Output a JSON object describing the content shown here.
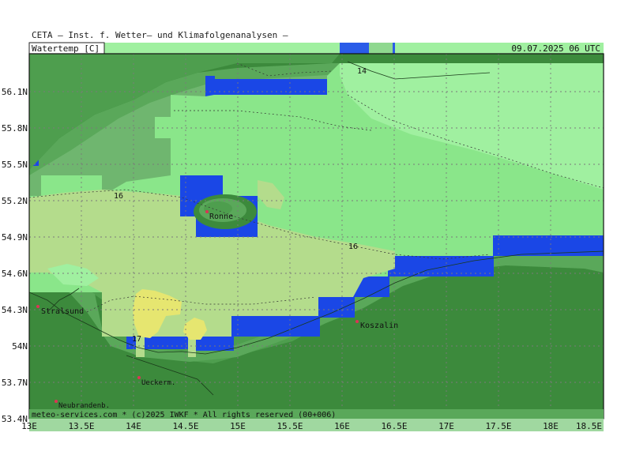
{
  "header": {
    "title": "CETA — Inst. f. Wetter— und Klimafolgenanalysen —",
    "parameter": "Watertemp [C]",
    "datetime": "09.07.2025 06 UTC"
  },
  "footer": {
    "credit": "meteo-services.com * (c)2025 IWKF * All rights reserved (00+006)"
  },
  "axes": {
    "lat_labels": [
      "56.1N",
      "55.8N",
      "55.5N",
      "55.2N",
      "54.9N",
      "54.6N",
      "54.3N",
      "54N",
      "53.7N",
      "53.4N"
    ],
    "lon_labels": [
      "13E",
      "13.5E",
      "14E",
      "14.5E",
      "15E",
      "15.5E",
      "16E",
      "16.5E",
      "17E",
      "17.5E",
      "18E",
      "18.5E"
    ]
  },
  "contour_labels": [
    "14",
    "16",
    "16",
    "17"
  ],
  "cities": [
    "Ronne",
    "Stralsund",
    "Koszalin",
    "Ueckerm.",
    "Neubrandenb."
  ],
  "colors": {
    "land": "#4e9e4e",
    "coast_band": "#3c8a3c",
    "shelf_band": "#6fb66f",
    "deep_blue": "#1a47e6",
    "water_14": "#a0f0a0",
    "water_15": "#8ae68a",
    "water_16": "#b4dc8c",
    "water_17": "#e6e670",
    "city_marker": "#dd3355"
  }
}
